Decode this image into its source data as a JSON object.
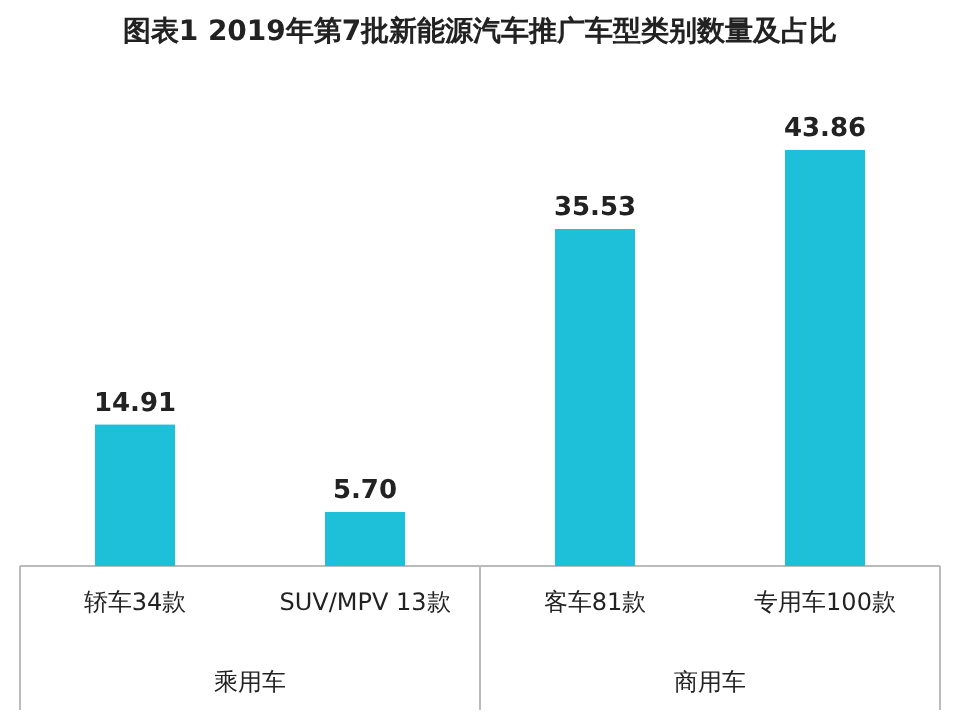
{
  "chart_data": {
    "type": "bar",
    "title": "图表1   2019年第7批新能源汽车推广车型类别数量及占比",
    "categories": [
      "轿车34款",
      "SUV/MPV 13款",
      "客车81款",
      "专用车100款"
    ],
    "values": [
      14.91,
      5.7,
      35.53,
      43.86
    ],
    "value_labels": [
      "14.91",
      "5.70",
      "35.53",
      "43.86"
    ],
    "color": "#1ebfd9",
    "annotations": [
      "乘用车",
      "商用车"
    ]
  }
}
